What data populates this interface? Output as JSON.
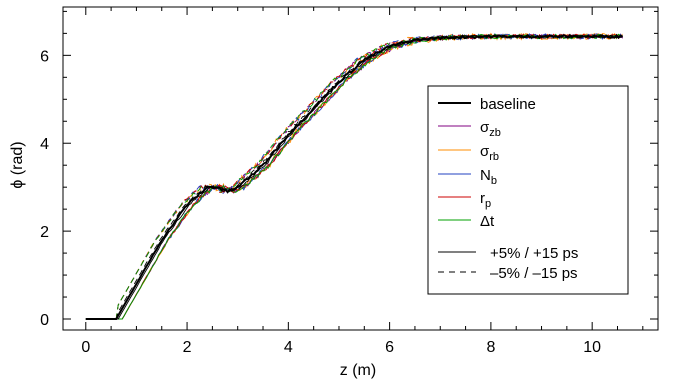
{
  "chart_data": {
    "type": "line",
    "xlabel": "z (m)",
    "ylabel": "ϕ (rad)",
    "xlim": [
      -0.45,
      11.3
    ],
    "ylim": [
      -0.25,
      7.1
    ],
    "xticks": [
      0,
      2,
      4,
      6,
      8,
      10
    ],
    "yticks": [
      0,
      2,
      4,
      6
    ],
    "grid": false,
    "legend_position": "right",
    "series": [
      {
        "name": "baseline",
        "color": "#000000",
        "noise": 0.03
      },
      {
        "name": "σzb",
        "label_main": "σ",
        "label_sub": "zb",
        "color": "#800080",
        "noise": 0.05
      },
      {
        "name": "σrb",
        "label_main": "σ",
        "label_sub": "rb",
        "color": "#ff8c00",
        "noise": 0.07
      },
      {
        "name": "Nb",
        "label_main": "N",
        "label_sub": "b",
        "color": "#2040c0",
        "noise": 0.06
      },
      {
        "name": "rp",
        "label_main": "r",
        "label_sub": "p",
        "color": "#cc0000",
        "noise": 0.05
      },
      {
        "name": "Δt",
        "label_main": "Δt",
        "label_sub": "",
        "color": "#00a000",
        "noise": 0.05
      }
    ],
    "baseline_curve": {
      "z": [
        0.0,
        0.6,
        1.0,
        1.5,
        2.0,
        2.4,
        2.6,
        2.8,
        3.0,
        3.5,
        4.0,
        4.5,
        5.0,
        5.5,
        6.0,
        6.5,
        7.0,
        7.5,
        8.0,
        9.0,
        10.0,
        10.6
      ],
      "phi": [
        0.0,
        0.0,
        0.8,
        1.8,
        2.6,
        3.0,
        3.0,
        2.9,
        3.0,
        3.5,
        4.2,
        4.8,
        5.4,
        5.9,
        6.2,
        6.35,
        6.4,
        6.42,
        6.43,
        6.43,
        6.43,
        6.43
      ]
    },
    "line_styles": [
      {
        "style": "solid",
        "label": "+5% / +15 ps"
      },
      {
        "style": "dashed",
        "label": "–5% / –15 ps"
      }
    ]
  }
}
